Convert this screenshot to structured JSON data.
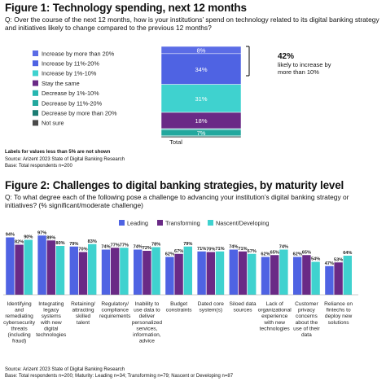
{
  "figure1": {
    "title": "Figure 1: Technology spending, next 12 months",
    "question": "Q: Over the course of the next 12 months, how is your institutions’ spend on technology related to its digital banking strategy and initiatives likely to change compared to the previous 12 months?",
    "callout_value": "42%",
    "callout_text_line1": "likely to increase by",
    "callout_text_line2": "more than 10%",
    "labels_note": "Labels for values less than 5% are not shown",
    "source": "Source: Arizent 2023 State of Digital Banking Research",
    "base": "Base: Total respondents n=200"
  },
  "figure2": {
    "title": "Figure 2: Challenges to digital banking strategies, by maturity level",
    "question": "Q: To what degree each of the following pose a challenge to advancing your institution’s digital banking strategy or initiatives? (% significant/moderate challenge)",
    "source": "Source: Arizent 2023 State of Digital Banking Research",
    "base": "Base: Total respondents n=200; Maturity: Leading n=34; Transforming n=79; Nascent or Developing n=87"
  },
  "chart_data": [
    {
      "type": "bar",
      "stacked": true,
      "categories": [
        "Total"
      ],
      "series": [
        {
          "name": "Increase by more than 20%",
          "values": [
            8
          ],
          "color": "#5b6ce6",
          "label": "8%"
        },
        {
          "name": "Increase by 11%-20%",
          "values": [
            34
          ],
          "color": "#4f63e3",
          "label": "34%"
        },
        {
          "name": "Increase by 1%-10%",
          "values": [
            31
          ],
          "color": "#3fd2cf",
          "label": "31%"
        },
        {
          "name": "Stay the same",
          "values": [
            18
          ],
          "color": "#6a2a86",
          "label": "18%"
        },
        {
          "name": "Decrease by 1%-10%",
          "values": [
            1
          ],
          "color": "#27b6b0",
          "label": ""
        },
        {
          "name": "Decrease by 11%-20%",
          "values": [
            7
          ],
          "color": "#23a89e",
          "label": "7%"
        },
        {
          "name": "Decrease by more than 20%",
          "values": [
            1
          ],
          "color": "#1b7c73",
          "label": ""
        },
        {
          "name": "Not sure",
          "values": [
            1
          ],
          "color": "#4a4a4a",
          "label": ""
        }
      ],
      "ylim": [
        0,
        100
      ],
      "legend": "left"
    },
    {
      "type": "bar",
      "categories": [
        "Identifying and remediating cybersecurity threats (including fraud)",
        "Integrating legacy systems with new digital technologies",
        "Retaining/ attracting skilled talent",
        "Regulatory/ compliance requirements",
        "Inability to use data to deliver personalized services, information, advice",
        "Budget constraints",
        "Dated core system(s)",
        "Siloed data sources",
        "Lack of organizational experience with new technologies",
        "Customer privacy concerns about the use of their data",
        "Reliance on fintechs to deploy new solutions"
      ],
      "category_lines": [
        [
          "Identifying",
          "and",
          "remediating",
          "cybersecurity",
          "threats",
          "(including",
          "fraud)"
        ],
        [
          "Integrating",
          "legacy",
          "systems",
          "with new",
          "digital",
          "technologies"
        ],
        [
          "Retaining/",
          "attracting",
          "skilled",
          "talent"
        ],
        [
          "Regulatory/",
          "compliance",
          "requirements"
        ],
        [
          "Inability to",
          "use data to",
          "deliver",
          "personalized",
          "services,",
          "information,",
          "advice"
        ],
        [
          "Budget",
          "constraints"
        ],
        [
          "Dated core",
          "system(s)"
        ],
        [
          "Siloed data",
          "sources"
        ],
        [
          "Lack of",
          "organizational",
          "experience",
          "with new",
          "technologies"
        ],
        [
          "Customer",
          "privacy",
          "concerns",
          "about the",
          "use of their",
          "data"
        ],
        [
          "Reliance on",
          "fintechs to",
          "deploy new",
          "solutions"
        ]
      ],
      "series": [
        {
          "name": "Leading",
          "color": "#4f63e3",
          "values": [
            94,
            97,
            79,
            74,
            74,
            62,
            71,
            74,
            62,
            62,
            47
          ],
          "labels": [
            "94%",
            "97%",
            "79%",
            "74%",
            "74%",
            "62%",
            "71%",
            "74%",
            "62%",
            "62%",
            "47%"
          ]
        },
        {
          "name": "Transforming",
          "color": "#6a2a86",
          "values": [
            82,
            89,
            70,
            77,
            72,
            67,
            70,
            71,
            65,
            65,
            53
          ],
          "labels": [
            "82%",
            "89%",
            "70%",
            "77%",
            "72%",
            "67%",
            "70%",
            "71%",
            "65%",
            "65%",
            "53%"
          ]
        },
        {
          "name": "Nascent/Developing",
          "color": "#3fd2cf",
          "values": [
            90,
            80,
            83,
            77,
            78,
            79,
            71,
            67,
            74,
            54,
            64
          ],
          "labels": [
            "90%",
            "80%",
            "83%",
            "77%",
            "78%",
            "79%",
            "71%",
            "67%",
            "74%",
            "54%",
            "64%"
          ]
        }
      ],
      "ylim": [
        0,
        100
      ],
      "legend": "top"
    }
  ]
}
